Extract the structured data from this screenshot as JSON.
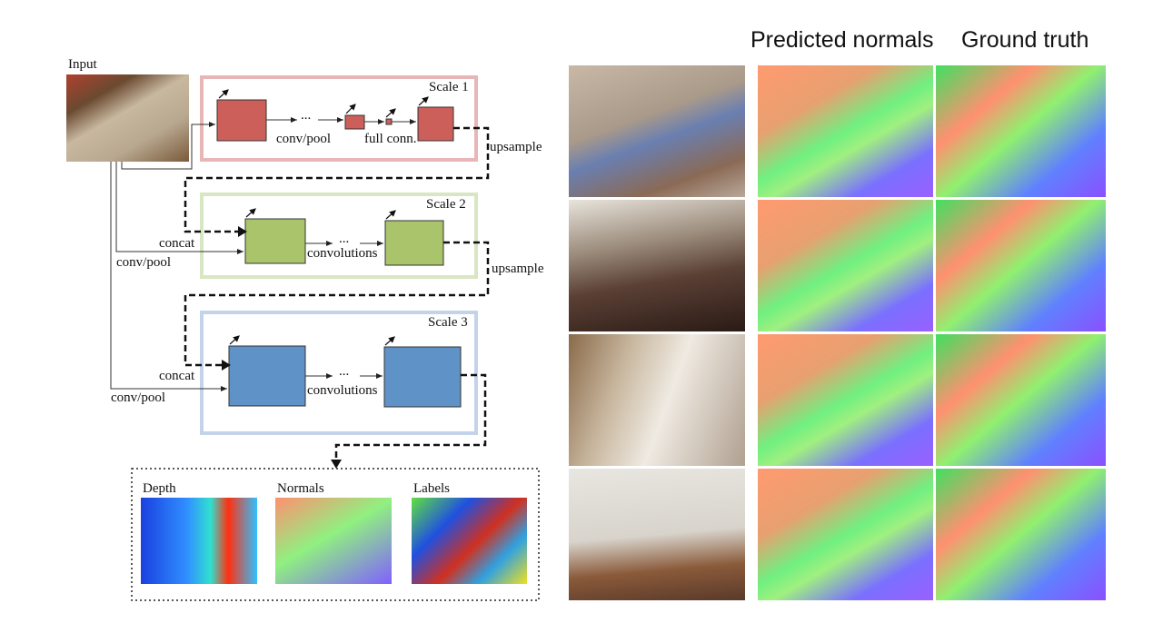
{
  "diagram": {
    "input_label": "Input",
    "scales": [
      {
        "title": "Scale 1",
        "color": "#e8b6b6",
        "block_color": "#cd5f5a",
        "labels": [
          "conv/pool",
          "full conn."
        ]
      },
      {
        "title": "Scale 2",
        "color": "#d9e6c3",
        "block_color": "#a9c46b",
        "labels": [
          "convolutions"
        ]
      },
      {
        "title": "Scale 3",
        "color": "#c3d4ea",
        "block_color": "#5f92c6",
        "labels": [
          "convolutions"
        ]
      }
    ],
    "ellipsis": "...",
    "upsample_label": "upsample",
    "concat_label": "concat",
    "convpool_label": "conv/pool",
    "outputs": [
      "Depth",
      "Normals",
      "Labels"
    ]
  },
  "results": {
    "headers": [
      "Predicted normals",
      "Ground truth"
    ]
  }
}
